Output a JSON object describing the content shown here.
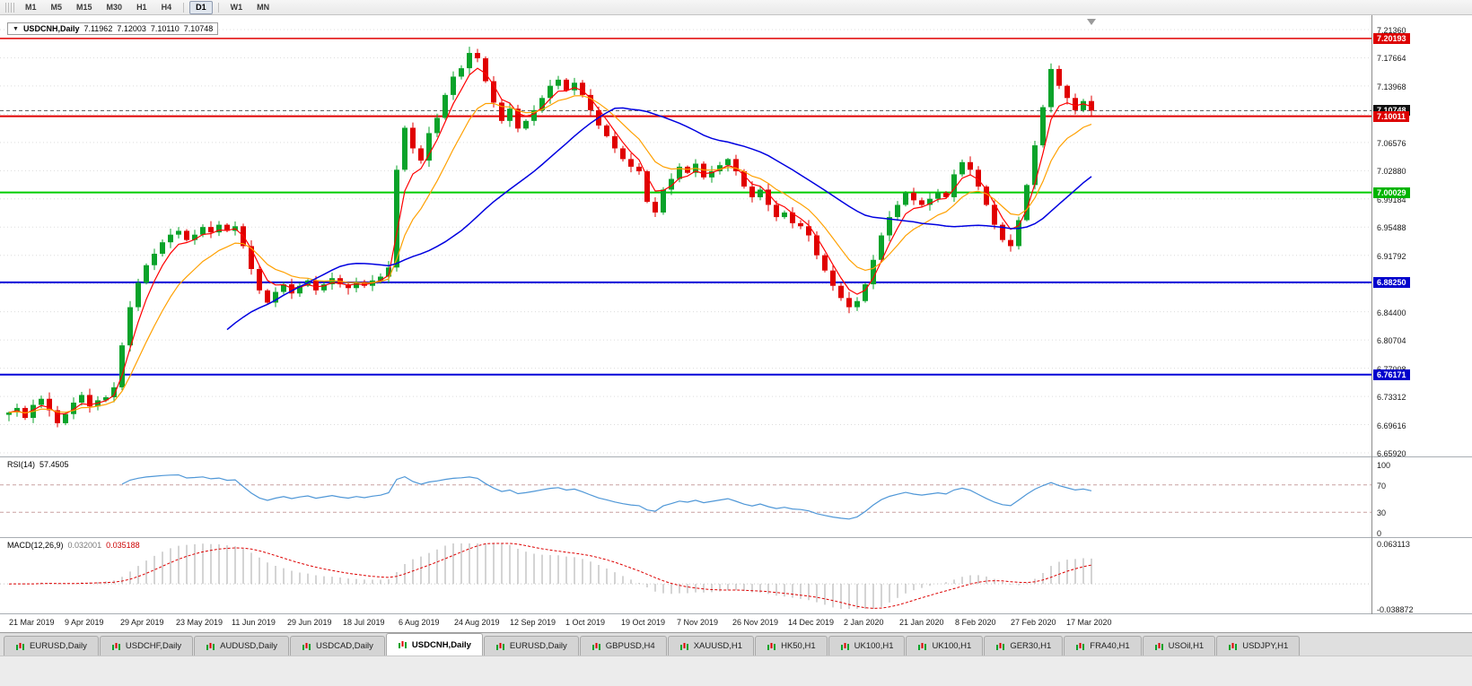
{
  "toolbar": {
    "groups": [
      [
        "M1",
        "M5",
        "M15",
        "M30",
        "H1",
        "H4"
      ],
      [
        "D1"
      ],
      [
        "W1",
        "MN"
      ]
    ],
    "active": "D1"
  },
  "chart_header": {
    "dropdown_icon": "▼",
    "symbol": "USDCNH,Daily",
    "open": "7.11962",
    "high": "7.12003",
    "low": "7.10110",
    "close": "7.10748"
  },
  "indicators": {
    "rsi_label": "RSI(14)",
    "rsi_value": "57.4505",
    "macd_label": "MACD(12,26,9)",
    "macd_main": "0.032001",
    "macd_signal": "0.035188"
  },
  "axes": {
    "price_labels": [
      "7.21360",
      "7.17664",
      "7.13968",
      "7.10272",
      "7.06576",
      "7.02880",
      "6.99184",
      "6.95488",
      "6.91792",
      "6.88096",
      "6.84400",
      "6.80704",
      "6.77008",
      "6.73312",
      "6.69616",
      "6.65920"
    ],
    "rsi_labels": [
      {
        "text": "100",
        "value": 100
      },
      {
        "text": "70",
        "value": 70
      },
      {
        "text": "30",
        "value": 30
      },
      {
        "text": "0",
        "value": 0
      }
    ],
    "macd_labels": [
      {
        "text": "0.063113",
        "value": 0.063113
      },
      {
        "text": "-0.038872",
        "value": -0.038872
      }
    ],
    "dates": [
      "21 Mar 2019",
      "9 Apr 2019",
      "29 Apr 2019",
      "23 May 2019",
      "11 Jun 2019",
      "29 Jun 2019",
      "18 Jul 2019",
      "6 Aug 2019",
      "24 Aug 2019",
      "12 Sep 2019",
      "1 Oct 2019",
      "19 Oct 2019",
      "7 Nov 2019",
      "26 Nov 2019",
      "14 Dec 2019",
      "2 Jan 2020",
      "21 Jan 2020",
      "8 Feb 2020",
      "27 Feb 2020",
      "17 Mar 2020"
    ]
  },
  "levels": {
    "badges": [
      {
        "text": "7.20193",
        "value": 7.20193,
        "bg": "#dd0000"
      },
      {
        "text": "7.10748",
        "value": 7.10748,
        "bg": "#111111"
      },
      {
        "text": "7.10011",
        "value": 7.10011,
        "bg": "#dd0000"
      },
      {
        "text": "7.00029",
        "value": 7.00029,
        "bg": "#00b400"
      },
      {
        "text": "6.88250",
        "value": 6.8825,
        "bg": "#0000cc"
      },
      {
        "text": "6.76171",
        "value": 6.76171,
        "bg": "#0000cc"
      }
    ]
  },
  "chart_data": [
    {
      "type": "candlestick",
      "title": "USDCNH,Daily",
      "ohlc_current": {
        "open": 7.11962,
        "high": 7.12003,
        "low": 7.1011,
        "close": 7.10748
      },
      "ylim": [
        6.6592,
        7.2136
      ],
      "x_axis_dates": [
        "21 Mar 2019",
        "9 Apr 2019",
        "29 Apr 2019",
        "23 May 2019",
        "11 Jun 2019",
        "29 Jun 2019",
        "18 Jul 2019",
        "6 Aug 2019",
        "24 Aug 2019",
        "12 Sep 2019",
        "1 Oct 2019",
        "19 Oct 2019",
        "7 Nov 2019",
        "26 Nov 2019",
        "14 Dec 2019",
        "2 Jan 2020",
        "21 Jan 2020",
        "8 Feb 2020",
        "27 Feb 2020",
        "17 Mar 2020"
      ],
      "closes": [
        6.712,
        6.718,
        6.705,
        6.722,
        6.73,
        6.715,
        6.698,
        6.71,
        6.725,
        6.735,
        6.72,
        6.728,
        6.732,
        6.745,
        6.8,
        6.85,
        6.882,
        6.905,
        6.92,
        6.935,
        6.945,
        6.95,
        6.938,
        6.945,
        6.955,
        6.948,
        6.958,
        6.95,
        6.956,
        6.93,
        6.9,
        6.872,
        6.856,
        6.87,
        6.88,
        6.868,
        6.878,
        6.885,
        6.872,
        6.88,
        6.888,
        6.88,
        6.875,
        6.883,
        6.878,
        6.885,
        6.89,
        6.902,
        7.03,
        7.085,
        7.058,
        7.042,
        7.078,
        7.098,
        7.128,
        7.152,
        7.163,
        7.183,
        7.176,
        7.146,
        7.118,
        7.094,
        7.11,
        7.084,
        7.094,
        7.108,
        7.124,
        7.14,
        7.148,
        7.134,
        7.144,
        7.128,
        7.108,
        7.088,
        7.074,
        7.058,
        7.044,
        7.034,
        7.028,
        6.988,
        6.974,
        7.004,
        7.018,
        7.034,
        7.026,
        7.038,
        7.02,
        7.028,
        7.036,
        7.044,
        7.028,
        7.008,
        6.994,
        7.004,
        6.984,
        6.968,
        6.974,
        6.96,
        6.956,
        6.944,
        6.918,
        6.898,
        6.878,
        6.862,
        6.85,
        6.858,
        6.88,
        6.912,
        6.944,
        6.968,
        6.984,
        7.0,
        6.99,
        6.984,
        6.992,
        7.0,
        6.994,
        7.024,
        7.04,
        7.03,
        7.008,
        6.984,
        6.958,
        6.938,
        6.93,
        6.964,
        7.01,
        7.062,
        7.112,
        7.162,
        7.14,
        7.124,
        7.108,
        7.12,
        7.10748
      ],
      "hlines": [
        {
          "price": 7.20193,
          "color": "#e00000",
          "style": "solid",
          "width": 1.5
        },
        {
          "price": 7.10748,
          "color": "#555555",
          "style": "dash",
          "width": 1
        },
        {
          "price": 7.10011,
          "color": "#e00000",
          "style": "solid",
          "width": 2
        },
        {
          "price": 7.00029,
          "color": "#00cc00",
          "style": "solid",
          "width": 2
        },
        {
          "price": 6.8825,
          "color": "#0000d8",
          "style": "solid",
          "width": 2
        },
        {
          "price": 6.76171,
          "color": "#0000d8",
          "style": "solid",
          "width": 2
        }
      ],
      "moving_averages": [
        {
          "name": "fast",
          "method": "ema",
          "period": 4,
          "color": "#ff0000",
          "width": 1.2
        },
        {
          "name": "mid",
          "method": "ema",
          "period": 10,
          "color": "#ffa000",
          "width": 1.2
        },
        {
          "name": "slow",
          "method": "sma",
          "period": 28,
          "color": "#0000e0",
          "width": 1.5
        }
      ],
      "up_color": "#0aa32a",
      "down_color": "#e00000",
      "grid_color": "#dcdcdc"
    },
    {
      "type": "line",
      "title": "RSI(14)",
      "period": 14,
      "current_value": 57.4505,
      "ylim": [
        0,
        100
      ],
      "levels": [
        70,
        30
      ],
      "level_color": "#c9a0a0",
      "color": "#4f97d7"
    },
    {
      "type": "macd",
      "title": "MACD(12,26,9)",
      "params": [
        12,
        26,
        9
      ],
      "main_value": 0.032001,
      "signal_value": 0.035188,
      "ylim": [
        -0.038872,
        0.063113
      ],
      "histogram_color": "#a8a8a8",
      "signal_color": "#dd0000"
    }
  ],
  "tabs": {
    "items": [
      "EURUSD,Daily",
      "USDCHF,Daily",
      "AUDUSD,Daily",
      "USDCAD,Daily",
      "USDCNH,Daily",
      "EURUSD,Daily",
      "GBPUSD,H4",
      "XAUUSD,H1",
      "HK50,H1",
      "UK100,H1",
      "UK100,H1",
      "GER30,H1",
      "FRA40,H1",
      "USOil,H1",
      "USDJPY,H1"
    ],
    "active_index": 4
  }
}
